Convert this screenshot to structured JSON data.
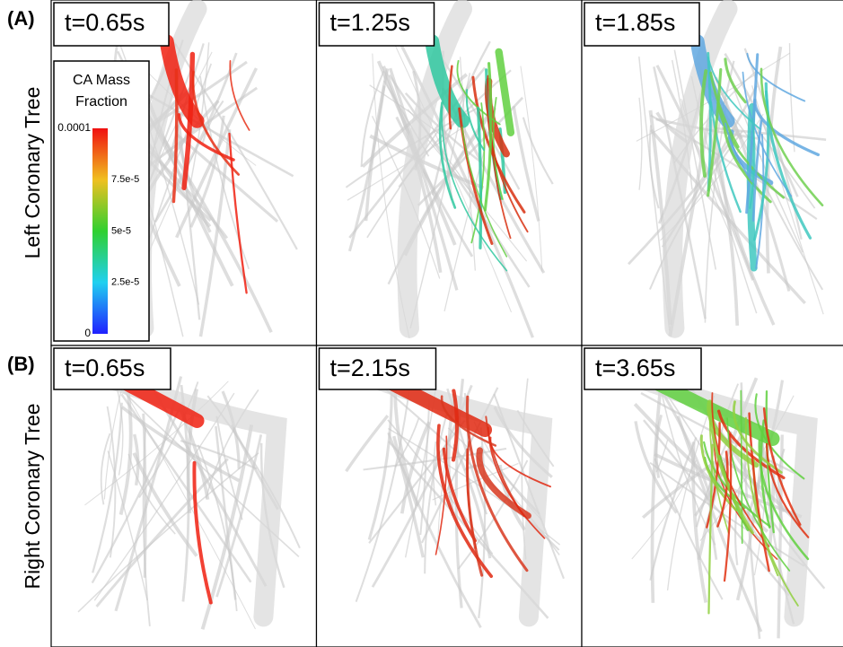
{
  "rows": [
    {
      "label": "(A)",
      "title": "Left Coronary Tree",
      "panels": [
        "t=0.65s",
        "t=1.25s",
        "t=1.85s"
      ]
    },
    {
      "label": "(B)",
      "title": "Right Coronary Tree",
      "panels": [
        "t=0.65s",
        "t=2.15s",
        "t=3.65s"
      ]
    }
  ],
  "colorbar": {
    "title_lines": [
      "CA Mass",
      "Fraction"
    ],
    "ticks": [
      "0.0001",
      "7.5e-5",
      "5e-5",
      "2.5e-5",
      "0"
    ]
  }
}
